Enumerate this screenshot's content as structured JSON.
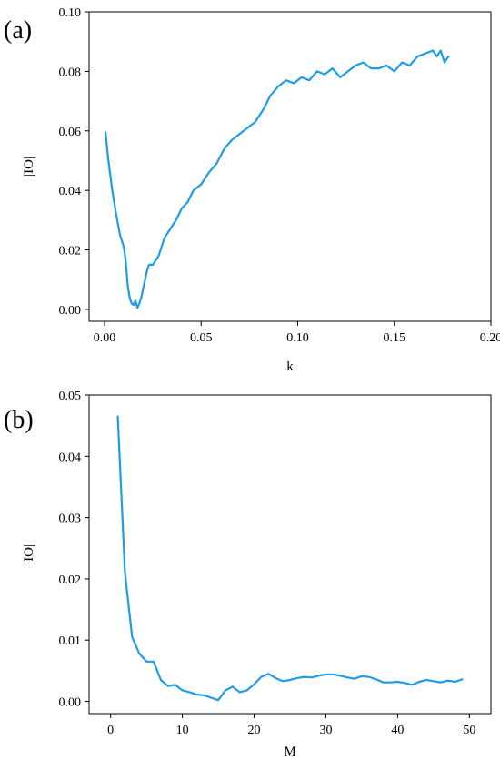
{
  "colors": {
    "line": "#1E9BE9",
    "axis": "#000000",
    "background": "#ffffff"
  },
  "chart_data": [
    {
      "type": "line",
      "panel_label": "(a)",
      "xlabel": "k",
      "ylabel": "|IO|",
      "xlim": [
        -0.008,
        0.2
      ],
      "ylim": [
        -0.004,
        0.1
      ],
      "xticks": [
        "0.00",
        "0.05",
        "0.10",
        "0.15",
        "0.20"
      ],
      "xtick_values": [
        0.0,
        0.05,
        0.1,
        0.15,
        0.2
      ],
      "yticks": [
        "0.00",
        "0.02",
        "0.04",
        "0.06",
        "0.08",
        "0.10"
      ],
      "ytick_values": [
        0.0,
        0.02,
        0.04,
        0.06,
        0.08,
        0.1
      ],
      "grid": false,
      "series": [
        {
          "x": [
            0.0005,
            0.002,
            0.004,
            0.006,
            0.008,
            0.01,
            0.011,
            0.012,
            0.013,
            0.014,
            0.015,
            0.016,
            0.017,
            0.018,
            0.019,
            0.02,
            0.021,
            0.022,
            0.023,
            0.025,
            0.028,
            0.031,
            0.034,
            0.037,
            0.04,
            0.043,
            0.046,
            0.05,
            0.054,
            0.058,
            0.062,
            0.066,
            0.07,
            0.074,
            0.078,
            0.082,
            0.086,
            0.09,
            0.094,
            0.098,
            0.102,
            0.106,
            0.11,
            0.114,
            0.118,
            0.122,
            0.126,
            0.13,
            0.134,
            0.138,
            0.142,
            0.146,
            0.15,
            0.154,
            0.158,
            0.162,
            0.166,
            0.17,
            0.172,
            0.174,
            0.176,
            0.178
          ],
          "y": [
            0.0595,
            0.05,
            0.04,
            0.032,
            0.025,
            0.021,
            0.016,
            0.008,
            0.004,
            0.002,
            0.0015,
            0.003,
            0.0005,
            0.002,
            0.004,
            0.007,
            0.01,
            0.013,
            0.015,
            0.015,
            0.018,
            0.024,
            0.027,
            0.03,
            0.034,
            0.036,
            0.04,
            0.042,
            0.046,
            0.049,
            0.054,
            0.057,
            0.059,
            0.061,
            0.063,
            0.067,
            0.072,
            0.075,
            0.077,
            0.076,
            0.078,
            0.077,
            0.08,
            0.079,
            0.081,
            0.078,
            0.08,
            0.082,
            0.083,
            0.081,
            0.081,
            0.082,
            0.08,
            0.083,
            0.082,
            0.085,
            0.086,
            0.087,
            0.085,
            0.087,
            0.083,
            0.085
          ]
        }
      ]
    },
    {
      "type": "line",
      "panel_label": "(b)",
      "xlabel": "M",
      "ylabel": "|IO|",
      "xlim": [
        -3,
        53
      ],
      "ylim": [
        -0.002,
        0.05
      ],
      "xticks": [
        "0",
        "10",
        "20",
        "30",
        "40",
        "50"
      ],
      "xtick_values": [
        0,
        10,
        20,
        30,
        40,
        50
      ],
      "yticks": [
        "0.00",
        "0.01",
        "0.02",
        "0.03",
        "0.04",
        "0.05"
      ],
      "ytick_values": [
        0.0,
        0.01,
        0.02,
        0.03,
        0.04,
        0.05
      ],
      "grid": false,
      "series": [
        {
          "x": [
            1,
            2,
            3,
            4,
            5,
            6,
            7,
            8,
            9,
            10,
            11,
            12,
            13,
            14,
            15,
            16,
            17,
            18,
            19,
            20,
            21,
            22,
            23,
            24,
            25,
            26,
            27,
            28,
            29,
            30,
            31,
            32,
            33,
            34,
            35,
            36,
            37,
            38,
            39,
            40,
            41,
            42,
            43,
            44,
            45,
            46,
            47,
            48,
            49
          ],
          "y": [
            0.0465,
            0.021,
            0.0105,
            0.0078,
            0.0065,
            0.0065,
            0.0035,
            0.0025,
            0.0027,
            0.0018,
            0.0015,
            0.0011,
            0.001,
            0.0006,
            0.0002,
            0.0018,
            0.0024,
            0.0015,
            0.0018,
            0.0028,
            0.004,
            0.0045,
            0.0038,
            0.0033,
            0.0035,
            0.0038,
            0.004,
            0.0039,
            0.0042,
            0.0044,
            0.0044,
            0.0042,
            0.0039,
            0.0037,
            0.0041,
            0.004,
            0.0036,
            0.0031,
            0.0031,
            0.0032,
            0.003,
            0.0027,
            0.0032,
            0.0035,
            0.0033,
            0.0031,
            0.0034,
            0.0032,
            0.0036
          ]
        }
      ]
    }
  ]
}
